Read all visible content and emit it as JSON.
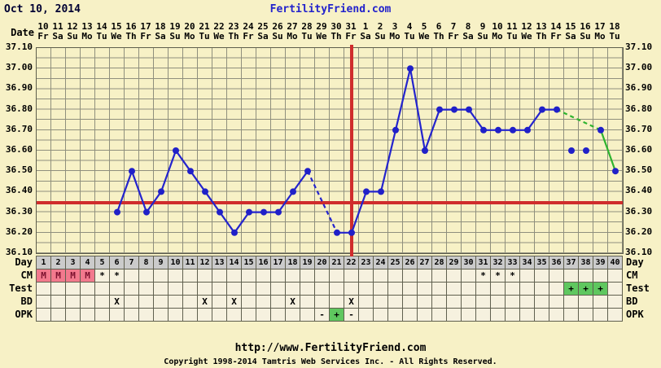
{
  "header": {
    "title": "Oct 10, 2014",
    "site_name": "FertilityFriend.com"
  },
  "axis": {
    "date_row_label": "Date",
    "dates": [
      "10",
      "11",
      "12",
      "13",
      "14",
      "15",
      "16",
      "17",
      "18",
      "19",
      "20",
      "21",
      "22",
      "23",
      "24",
      "25",
      "26",
      "27",
      "28",
      "29",
      "30",
      "31",
      "1",
      "2",
      "3",
      "4",
      "5",
      "6",
      "7",
      "8",
      "9",
      "10",
      "11",
      "12",
      "13",
      "14",
      "15",
      "16",
      "17",
      "18"
    ],
    "weekdays": [
      "Fr",
      "Sa",
      "Su",
      "Mo",
      "Tu",
      "We",
      "Th",
      "Fr",
      "Sa",
      "Su",
      "Mo",
      "Tu",
      "We",
      "Th",
      "Fr",
      "Sa",
      "Su",
      "Mo",
      "Tu",
      "We",
      "Th",
      "Fr",
      "Sa",
      "Su",
      "Mo",
      "Tu",
      "We",
      "Th",
      "Fr",
      "Sa",
      "Su",
      "Mo",
      "Tu",
      "We",
      "Th",
      "Fr",
      "Sa",
      "Su",
      "Mo",
      "Tu"
    ],
    "y_ticks": [
      "37.10",
      "37.00",
      "36.90",
      "36.80",
      "36.70",
      "36.60",
      "36.50",
      "36.40",
      "36.30",
      "36.20",
      "36.10"
    ]
  },
  "chart_data": {
    "type": "line",
    "title": "Basal body temperature by cycle day",
    "cycle_days": [
      1,
      2,
      3,
      4,
      5,
      6,
      7,
      8,
      9,
      10,
      11,
      12,
      13,
      14,
      15,
      16,
      17,
      18,
      19,
      20,
      21,
      22,
      23,
      24,
      25,
      26,
      27,
      28,
      29,
      30,
      31,
      32,
      33,
      34,
      35,
      36,
      37,
      38,
      39,
      40
    ],
    "temps_c": [
      null,
      null,
      null,
      null,
      null,
      36.3,
      36.5,
      36.3,
      36.4,
      36.6,
      36.5,
      36.4,
      36.3,
      36.2,
      36.3,
      36.3,
      36.3,
      36.4,
      36.5,
      null,
      36.2,
      36.2,
      36.4,
      36.4,
      36.7,
      37.0,
      36.6,
      36.8,
      36.8,
      36.8,
      36.7,
      36.7,
      36.7,
      36.7,
      36.8,
      36.8,
      36.6,
      36.6,
      36.7,
      36.5
    ],
    "ylim": [
      36.1,
      37.1
    ],
    "y_tick_step_major": 0.1,
    "y_tick_step_minor": 0.05,
    "coverline_value": 36.345,
    "ovulation_day": 22,
    "detached_days": [
      37,
      38
    ],
    "missing_days": [
      1,
      2,
      3,
      4,
      5,
      20
    ],
    "segments": [
      {
        "from_day": 6,
        "to_day": 19,
        "style": "solid",
        "color_key": "line_blue"
      },
      {
        "from_day": 19,
        "to_day": 21,
        "style": "dashed",
        "color_key": "line_blue"
      },
      {
        "from_day": 21,
        "to_day": 36,
        "style": "solid",
        "color_key": "line_blue"
      },
      {
        "from_day": 36,
        "to_day": 39,
        "style": "dashed",
        "color_key": "line_green"
      },
      {
        "from_day": 39,
        "to_day": 40,
        "style": "solid",
        "color_key": "line_green"
      }
    ],
    "grid": true,
    "legend": false
  },
  "table": {
    "days": [
      "1",
      "2",
      "3",
      "4",
      "5",
      "6",
      "7",
      "8",
      "9",
      "10",
      "11",
      "12",
      "13",
      "14",
      "15",
      "16",
      "17",
      "18",
      "19",
      "20",
      "21",
      "22",
      "23",
      "24",
      "25",
      "26",
      "27",
      "28",
      "29",
      "30",
      "31",
      "32",
      "33",
      "34",
      "35",
      "36",
      "37",
      "38",
      "39",
      "40"
    ],
    "rows": [
      {
        "label": "Day",
        "type": "day"
      },
      {
        "label": "CM",
        "type": "marks",
        "marks": {
          "1": "M",
          "2": "M",
          "3": "M",
          "4": "M",
          "5": "*",
          "6": "*",
          "31": "*",
          "32": "*",
          "33": "*"
        },
        "highlight": {
          "1": "menses",
          "2": "menses",
          "3": "menses",
          "4": "menses"
        }
      },
      {
        "label": "Test",
        "type": "marks",
        "marks": {
          "37": "+",
          "38": "+",
          "39": "+"
        },
        "highlight": {
          "37": "positive",
          "38": "positive",
          "39": "positive"
        }
      },
      {
        "label": "BD",
        "type": "marks",
        "marks": {
          "6": "X",
          "12": "X",
          "14": "X",
          "18": "X",
          "22": "X"
        },
        "highlight": {}
      },
      {
        "label": "OPK",
        "type": "marks",
        "marks": {
          "20": "-",
          "21": "+",
          "22": "-"
        },
        "highlight": {
          "21": "positive"
        }
      }
    ]
  },
  "footer": {
    "url": "http://www.FertilityFriend.com",
    "copyright": "Copyright 1998-2014 Tamtris Web Services Inc. - All Rights Reserved."
  },
  "colors": {
    "background": "#F7F1C6",
    "grid": "#8F8F7D",
    "line_blue": "#2424CD",
    "line_green": "#2FB32F",
    "point": "#2020C8",
    "crosshair_red": "#CF2C2C",
    "day_row_bg": "#CBCBCB",
    "cell_bg": "#F6F1DF",
    "menses_bg": "#F2798D",
    "positive_bg": "#5FC75F",
    "site_name_blue": "#2222CC"
  }
}
